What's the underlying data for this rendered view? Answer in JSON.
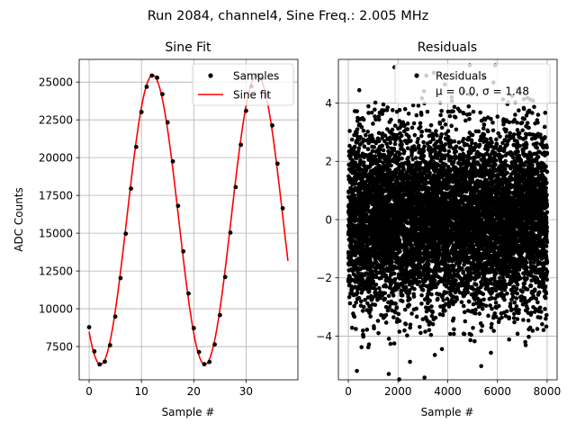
{
  "suptitle": "Run 2084, channel4, Sine Freq.: 2.005 MHz",
  "chart_data": [
    {
      "type": "line",
      "title": "Sine Fit",
      "xlabel": "Sample #",
      "ylabel": "ADC Counts",
      "xlim": [
        -1.9,
        39.9
      ],
      "ylim": [
        5300,
        26500
      ],
      "xticks": [
        0,
        10,
        20,
        30
      ],
      "xtick_labels": [
        "0",
        "10",
        "20",
        "30"
      ],
      "yticks": [
        7500,
        10000,
        12500,
        15000,
        17500,
        20000,
        22500,
        25000
      ],
      "ytick_labels": [
        "7500",
        "10000",
        "12500",
        "15000",
        "17500",
        "20000",
        "22500",
        "25000"
      ],
      "grid": true,
      "legend": {
        "placement": "top-right",
        "entries": [
          "Samples",
          "Sine fit"
        ]
      },
      "series": [
        {
          "name": "Samples",
          "kind": "scatter",
          "color": "#000000",
          "x": [
            0,
            1,
            2,
            3,
            4,
            5,
            6,
            7,
            8,
            9,
            10,
            11,
            12,
            13,
            14,
            15,
            16,
            17,
            18,
            19,
            20,
            21,
            22,
            23,
            24,
            25,
            26,
            27,
            28,
            29,
            30,
            31,
            32,
            33,
            34,
            35,
            36,
            37
          ],
          "y": [
            8780,
            7180,
            6320,
            6500,
            7590,
            9480,
            12030,
            14970,
            17950,
            20710,
            23020,
            24690,
            25430,
            25290,
            24200,
            22330,
            19750,
            16810,
            13800,
            11010,
            8720,
            7140,
            6330,
            6480,
            7640,
            9580,
            12100,
            15040,
            18050,
            20850,
            23100,
            24720,
            25450,
            25230,
            24110,
            22130,
            19600,
            16650
          ]
        },
        {
          "name": "Sine fit",
          "kind": "line",
          "color": "#ff0000",
          "amplitude": 9570,
          "offset": 15880,
          "period_samples": 19.95,
          "peak_sample": 12.15,
          "x_range": [
            0,
            38
          ]
        }
      ]
    },
    {
      "type": "scatter",
      "title": "Residuals",
      "xlabel": "Sample #",
      "ylabel": "",
      "xlim": [
        -400,
        8400
      ],
      "ylim": [
        -5.5,
        5.5
      ],
      "xticks": [
        0,
        2000,
        4000,
        6000,
        8000
      ],
      "xtick_labels": [
        "0",
        "2000",
        "4000",
        "6000",
        "8000"
      ],
      "yticks": [
        -4,
        -2,
        0,
        2,
        4
      ],
      "ytick_labels": [
        "−4",
        "−2",
        "0",
        "2",
        "4"
      ],
      "grid": true,
      "legend": {
        "placement": "top-right",
        "entries": [
          "Residuals",
          "μ = 0.0, σ = 1.48"
        ]
      },
      "series": [
        {
          "name": "Residuals",
          "color": "#000000",
          "n_points": 8000,
          "mean": 0.0,
          "std": 1.48,
          "x_range": [
            0,
            8000
          ]
        }
      ]
    }
  ]
}
